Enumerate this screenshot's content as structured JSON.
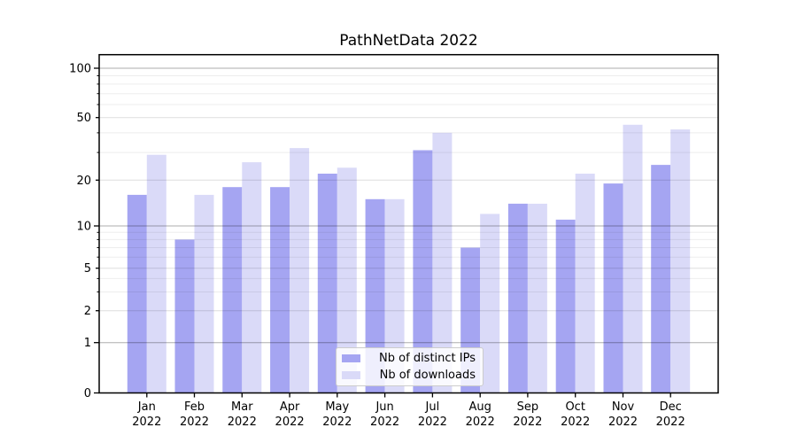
{
  "title": "PathNetData 2022",
  "chart_data": {
    "type": "bar",
    "title": "PathNetData 2022",
    "categories": [
      "Jan 2022",
      "Feb 2022",
      "Mar 2022",
      "Apr 2022",
      "May 2022",
      "Jun 2022",
      "Jul 2022",
      "Aug 2022",
      "Sep 2022",
      "Oct 2022",
      "Nov 2022",
      "Dec 2022"
    ],
    "series": [
      {
        "name": "Nb of distinct IPs",
        "color": "#a5a5f2",
        "values": [
          16,
          8,
          18,
          18,
          22,
          15,
          31,
          7,
          14,
          11,
          19,
          25
        ]
      },
      {
        "name": "Nb of downloads",
        "color": "#dadaf8",
        "values": [
          29,
          16,
          26,
          32,
          24,
          15,
          40,
          12,
          14,
          22,
          45,
          42
        ]
      }
    ],
    "xlabel": "",
    "ylabel": "",
    "yscale": "symlog",
    "ylim": [
      0,
      115
    ],
    "grid": "on",
    "legend_position": "lower center",
    "ytick_labels": [
      "0",
      "1",
      "2",
      "5",
      "10",
      "20",
      "50",
      "100"
    ],
    "ytick_values": [
      0,
      1,
      2,
      5,
      10,
      20,
      50,
      100
    ],
    "ytick_major_values": [
      1,
      10,
      100
    ],
    "ytick_minor_unlabeled": [
      3,
      4,
      6,
      7,
      8,
      9,
      30,
      40,
      60,
      70,
      80,
      90
    ]
  },
  "legend": {
    "items": [
      {
        "label": "Nb of distinct IPs",
        "color": "#a5a5f2"
      },
      {
        "label": "Nb of downloads",
        "color": "#dadaf8"
      }
    ]
  }
}
